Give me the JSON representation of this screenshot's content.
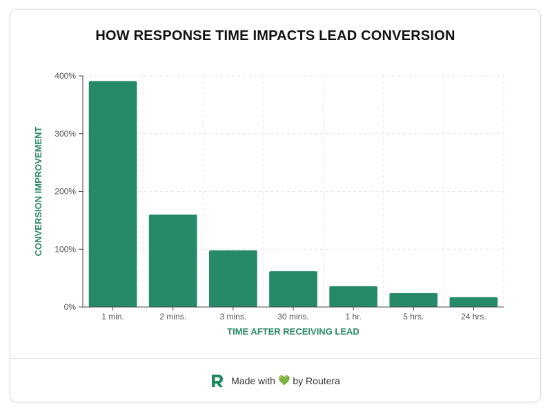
{
  "colors": {
    "bar": "#268a68",
    "axis_label": "#2a8a63",
    "grid": "#e6e6e6",
    "tick": "#555555"
  },
  "chart_data": {
    "type": "bar",
    "title": "HOW RESPONSE TIME IMPACTS LEAD CONVERSION",
    "xlabel": "TIME AFTER RECEIVING LEAD",
    "ylabel": "CONVERSION IMPROVEMENT",
    "categories": [
      "1 min.",
      "2 mins.",
      "3 mins.",
      "30 mins.",
      "1 hr.",
      "5 hrs.",
      "24 hrs."
    ],
    "values": [
      391,
      160,
      98,
      62,
      36,
      24,
      17
    ],
    "ylim": [
      0,
      400
    ],
    "yticks": [
      0,
      100,
      200,
      300,
      400
    ],
    "ytick_labels": [
      "0%",
      "100%",
      "200%",
      "300%",
      "400%"
    ],
    "grid": true
  },
  "footer": {
    "made_with": "Made with",
    "heart": "💚",
    "by": "by Routera"
  }
}
